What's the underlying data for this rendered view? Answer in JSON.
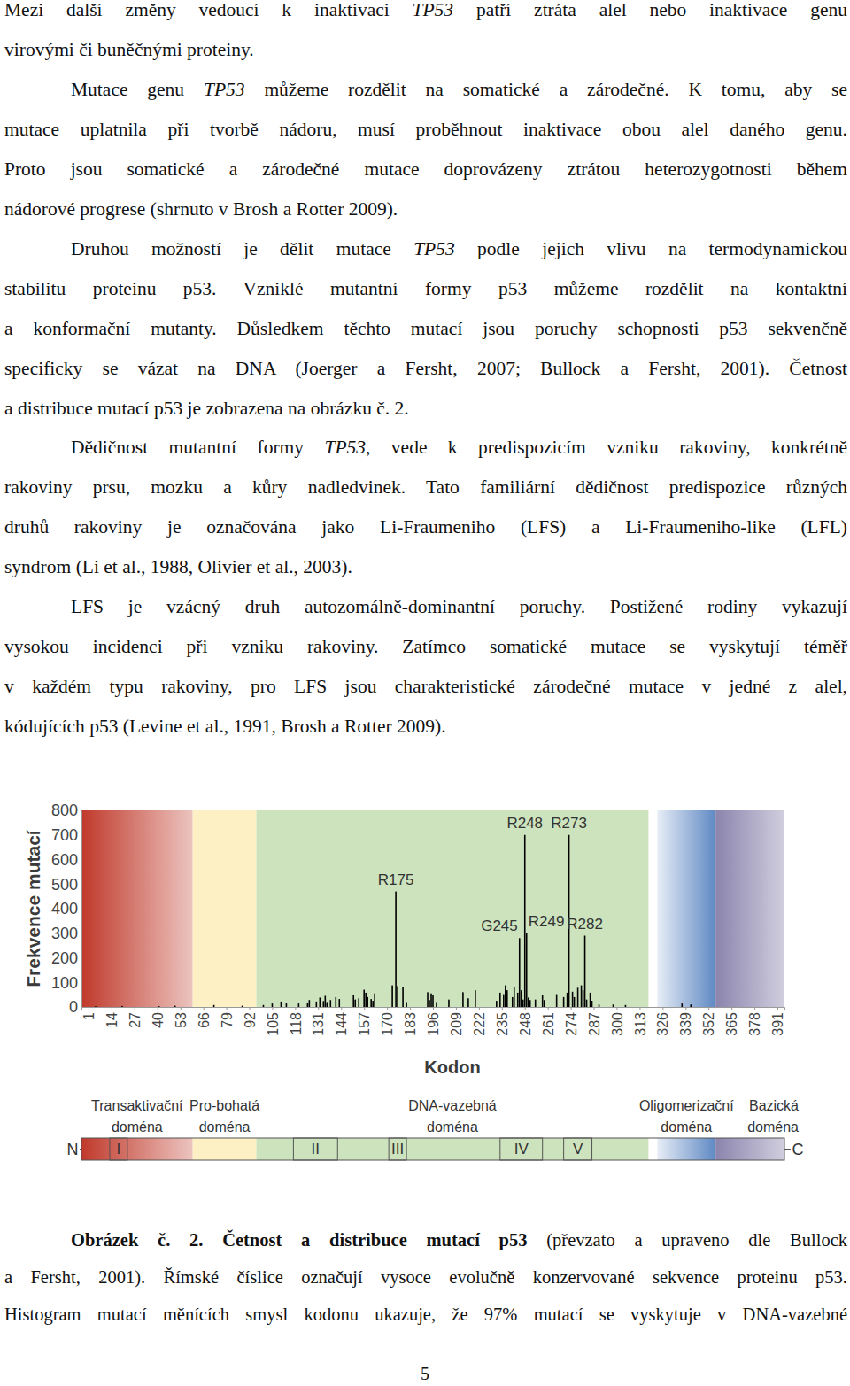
{
  "paragraphs": [
    {
      "indent": false,
      "lines": [
        [
          {
            "text": "Mezi další změny vedoucí k inaktivaci "
          },
          {
            "text": "TP53",
            "italic": true
          },
          {
            "text": " patří ztráta alel nebo inaktivace genu"
          }
        ],
        [
          {
            "text": "virovými či buněčnými proteiny."
          }
        ]
      ]
    },
    {
      "indent": true,
      "lines": [
        [
          {
            "text": "Mutace genu "
          },
          {
            "text": "TP53",
            "italic": true
          },
          {
            "text": " můžeme rozdělit na somatické a zárodečné. K tomu, aby se"
          }
        ],
        [
          {
            "text": "mutace uplatnila při tvorbě nádoru, musí proběhnout inaktivace obou alel daného genu."
          }
        ],
        [
          {
            "text": "Proto jsou somatické a zárodečné mutace doprovázeny ztrátou heterozygotnosti během"
          }
        ],
        [
          {
            "text": "nádorové progrese (shrnuto v Brosh a Rotter 2009)."
          }
        ]
      ]
    },
    {
      "indent": true,
      "lines": [
        [
          {
            "text": "Druhou možností je dělit mutace "
          },
          {
            "text": "TP53",
            "italic": true
          },
          {
            "text": " podle jejich vlivu na termodynamickou"
          }
        ],
        [
          {
            "text": "stabilitu proteinu p53. Vzniklé mutantní formy p53 můžeme rozdělit na kontaktní"
          }
        ],
        [
          {
            "text": "a konformační mutanty. Důsledkem těchto mutací jsou poruchy schopnosti p53 sekvenčně"
          }
        ],
        [
          {
            "text": "specificky se vázat na DNA (Joerger a Fersht, 2007; Bullock a Fersht, 2001). Četnost"
          }
        ],
        [
          {
            "text": "a distribuce mutací p53 je zobrazena na obrázku č. 2."
          }
        ]
      ]
    },
    {
      "indent": true,
      "lines": [
        [
          {
            "text": "Dědičnost mutantní formy "
          },
          {
            "text": "TP53",
            "italic": true
          },
          {
            "text": ", vede k predispozicím vzniku rakoviny, konkrétně"
          }
        ],
        [
          {
            "text": "rakoviny prsu, mozku a kůry nadledvinek. Tato familiární dědičnost predispozice různých"
          }
        ],
        [
          {
            "text": "druhů rakoviny je označována jako Li-Fraumeniho (LFS) a Li-Fraumeniho-like (LFL)"
          }
        ],
        [
          {
            "text": "syndrom (Li et al., 1988, Olivier et al., 2003)."
          }
        ]
      ]
    },
    {
      "indent": true,
      "lines": [
        [
          {
            "text": "LFS je vzácný druh autozomálně-dominantní poruchy. Postižené rodiny vykazují"
          }
        ],
        [
          {
            "text": "vysokou incidenci při vzniku rakoviny. Zatímco somatické mutace se vyskytují téměř"
          }
        ],
        [
          {
            "text": "v každém typu rakoviny, pro LFS jsou charakteristické zárodečné mutace v jedné z alel,"
          }
        ],
        [
          {
            "text": "kódujících p53 (Levine et al., 1991, Brosh a Rotter 2009)."
          }
        ]
      ]
    }
  ],
  "chart_data": {
    "type": "bar",
    "xlabel": "Kodon",
    "ylabel": "Frekvence mutací",
    "color": "#000000",
    "x": [
      5,
      20,
      41,
      50,
      72,
      88,
      100,
      105,
      110,
      113,
      120,
      125,
      126,
      130,
      132,
      134,
      135,
      136,
      138,
      141,
      143,
      151,
      152,
      154,
      157,
      158,
      159,
      161,
      162,
      163,
      173,
      175,
      176,
      179,
      181,
      193,
      194,
      195,
      196,
      198,
      205,
      213,
      216,
      220,
      232,
      234,
      236,
      237,
      238,
      241,
      242,
      244,
      245,
      246,
      247,
      248,
      249,
      250,
      251,
      254,
      258,
      259,
      266,
      270,
      272,
      273,
      275,
      276,
      278,
      280,
      281,
      282,
      283,
      285,
      286,
      290,
      298,
      305,
      337,
      342
    ],
    "values": [
      3,
      4,
      3,
      5,
      8,
      5,
      8,
      14,
      22,
      18,
      14,
      18,
      28,
      22,
      38,
      24,
      45,
      20,
      28,
      40,
      32,
      50,
      30,
      35,
      70,
      58,
      40,
      32,
      25,
      55,
      88,
      470,
      85,
      80,
      20,
      60,
      28,
      55,
      48,
      20,
      30,
      60,
      35,
      68,
      25,
      58,
      52,
      88,
      68,
      40,
      80,
      58,
      280,
      68,
      30,
      700,
      300,
      38,
      28,
      30,
      48,
      28,
      52,
      40,
      58,
      700,
      62,
      40,
      78,
      88,
      68,
      290,
      30,
      58,
      25,
      10,
      10,
      8,
      14,
      10
    ],
    "xlim": [
      -3,
      395
    ],
    "ylim": [
      0,
      800
    ],
    "xticks": [
      1,
      14,
      27,
      40,
      53,
      66,
      79,
      92,
      105,
      118,
      131,
      144,
      157,
      170,
      183,
      196,
      209,
      222,
      235,
      248,
      261,
      274,
      287,
      300,
      313,
      326,
      339,
      352,
      365,
      378,
      391
    ],
    "yticks": [
      0,
      100,
      200,
      300,
      400,
      500,
      600,
      700,
      800
    ],
    "annotations": [
      {
        "text": "R175",
        "x": 175
      },
      {
        "text": "G245",
        "x": 245
      },
      {
        "text": "R248",
        "x": 248
      },
      {
        "text": "R249",
        "x": 249
      },
      {
        "text": "R273",
        "x": 273
      },
      {
        "text": "R282",
        "x": 282
      }
    ],
    "domains": [
      {
        "label_lines": [
          "Transaktivační",
          "doména"
        ],
        "start": -3,
        "end": 60,
        "color": "#c0392b"
      },
      {
        "label_lines": [
          "Pro-bohatá",
          "doména"
        ],
        "start": 60,
        "end": 96,
        "color": "#fdf0c4"
      },
      {
        "label_lines": [
          "DNA-vazebná",
          "doména"
        ],
        "start": 96,
        "end": 318,
        "color": "#cce3bd"
      },
      {
        "label_lines": [
          "Oligomerizační",
          "doména"
        ],
        "start": 323,
        "end": 356,
        "color": "#5f89c4"
      },
      {
        "label_lines": [
          "Bazická",
          "doména"
        ],
        "start": 356,
        "end": 395,
        "color": "#8b84ad"
      }
    ],
    "conserved": [
      {
        "label": "I",
        "start": 13,
        "end": 23
      },
      {
        "label": "II",
        "start": 117,
        "end": 142
      },
      {
        "label": "III",
        "start": 171,
        "end": 181
      },
      {
        "label": "IV",
        "start": 234,
        "end": 258
      },
      {
        "label": "V",
        "start": 270,
        "end": 286
      }
    ],
    "diagram_ends": [
      "N",
      "C"
    ]
  },
  "caption": {
    "lines": [
      [
        {
          "text": "Obrázek č. 2. Četnost a distribuce mutací p53",
          "bold": true
        },
        {
          "text": " (převzato a upraveno dle Bullock"
        }
      ],
      [
        {
          "text": "a Fersht, 2001). Římské číslice označují vysoce evolučně konzervované sekvence proteinu p53."
        }
      ],
      [
        {
          "text": "Histogram mutací měnících smysl kodonu ukazuje, že 97% mutací se vyskytuje v DNA-vazebné"
        }
      ]
    ]
  },
  "page_number": "5"
}
